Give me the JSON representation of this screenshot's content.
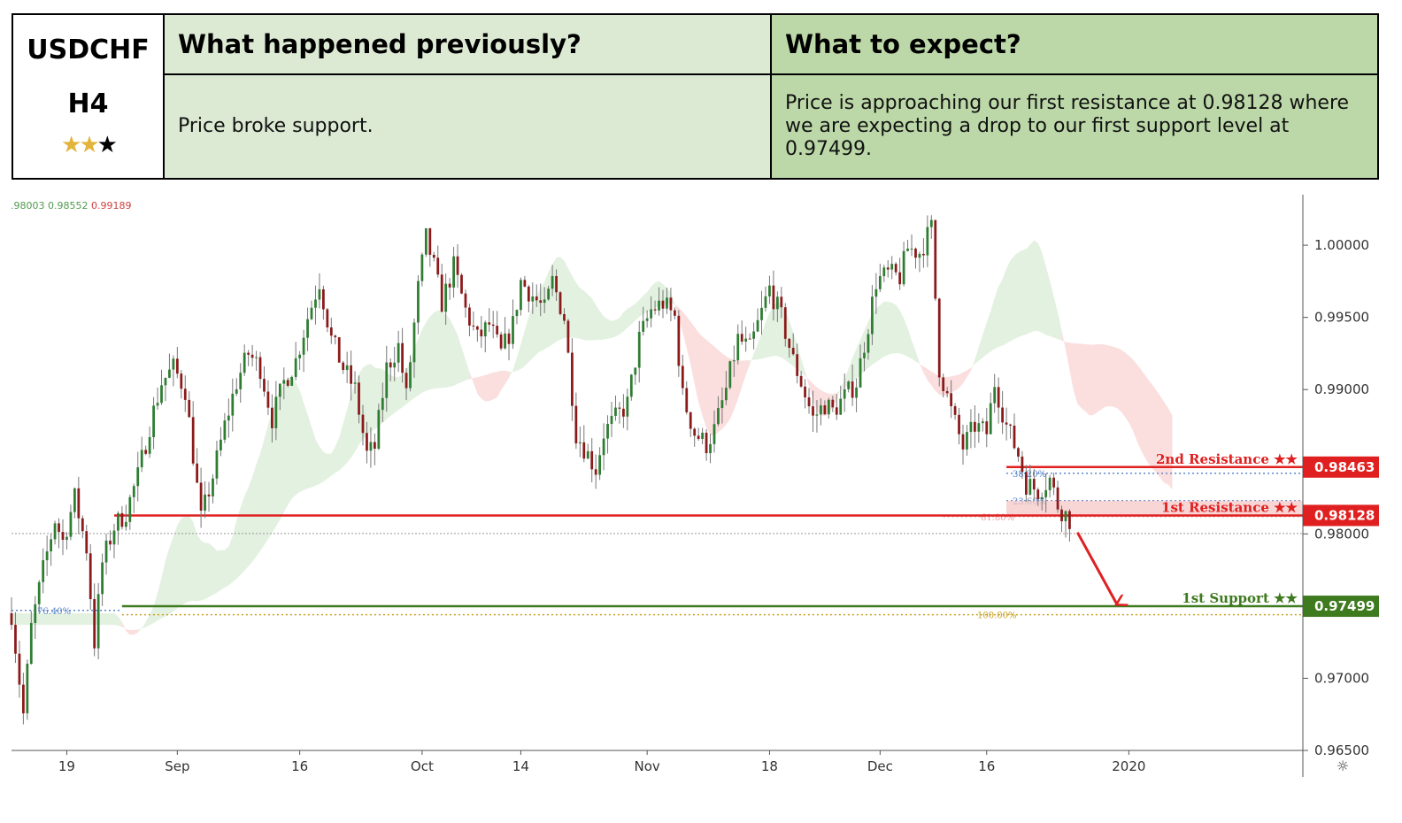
{
  "header": {
    "symbol": "USDCHF",
    "timeframe": "H4",
    "rating_stars_filled": 2,
    "rating_stars_total": 3,
    "prev_title": "What happened previously?",
    "prev_text": "Price broke support.",
    "expect_title": "What to expect?",
    "expect_text": "Price is approaching our first resistance at 0.98128 where we are expecting a drop to our first support level at 0.97499."
  },
  "legend_values": [
    ".98003",
    "0.98552",
    "0.99189"
  ],
  "chart_data": {
    "type": "candlestick",
    "symbol": "USDCHF",
    "timeframe": "H4",
    "ylim": [
      0.965,
      1.0035
    ],
    "yticks": [
      "1.00000",
      "0.99500",
      "0.99000",
      "0.98000",
      "0.97000",
      "0.96500"
    ],
    "xticks": [
      "19",
      "Sep",
      "16",
      "Oct",
      "14",
      "Nov",
      "18",
      "Dec",
      "16",
      "2020"
    ],
    "close_path": [
      [
        0,
        0.9745
      ],
      [
        3,
        0.9675
      ],
      [
        5,
        0.9735
      ],
      [
        8,
        0.9775
      ],
      [
        11,
        0.981
      ],
      [
        13,
        0.9795
      ],
      [
        16,
        0.9825
      ],
      [
        19,
        0.979
      ],
      [
        21,
        0.9725
      ],
      [
        23,
        0.978
      ],
      [
        26,
        0.9805
      ],
      [
        29,
        0.9815
      ],
      [
        32,
        0.984
      ],
      [
        35,
        0.9875
      ],
      [
        38,
        0.9905
      ],
      [
        41,
        0.9915
      ],
      [
        44,
        0.99
      ],
      [
        46,
        0.9855
      ],
      [
        48,
        0.981
      ],
      [
        51,
        0.984
      ],
      [
        54,
        0.9875
      ],
      [
        57,
        0.9905
      ],
      [
        60,
        0.9925
      ],
      [
        63,
        0.9915
      ],
      [
        66,
        0.988
      ],
      [
        69,
        0.9905
      ],
      [
        72,
        0.992
      ],
      [
        75,
        0.995
      ],
      [
        78,
        0.9975
      ],
      [
        81,
        0.9935
      ],
      [
        84,
        0.9915
      ],
      [
        87,
        0.99
      ],
      [
        90,
        0.9855
      ],
      [
        92,
        0.986
      ],
      [
        95,
        0.9915
      ],
      [
        98,
        0.993
      ],
      [
        100,
        0.9895
      ],
      [
        103,
        0.997
      ],
      [
        105,
        1.0005
      ],
      [
        107,
        0.9985
      ],
      [
        109,
        0.996
      ],
      [
        112,
        0.9985
      ],
      [
        115,
        0.9955
      ],
      [
        118,
        0.9935
      ],
      [
        121,
        0.9945
      ],
      [
        124,
        0.9925
      ],
      [
        127,
        0.9945
      ],
      [
        129,
        0.9975
      ],
      [
        132,
        0.9965
      ],
      [
        135,
        0.9955
      ],
      [
        137,
        0.9975
      ],
      [
        140,
        0.995
      ],
      [
        143,
        0.987
      ],
      [
        146,
        0.9855
      ],
      [
        148,
        0.9845
      ],
      [
        150,
        0.987
      ],
      [
        153,
        0.988
      ],
      [
        156,
        0.989
      ],
      [
        159,
        0.9935
      ],
      [
        162,
        0.9955
      ],
      [
        165,
        0.996
      ],
      [
        168,
        0.995
      ],
      [
        170,
        0.9895
      ],
      [
        173,
        0.987
      ],
      [
        176,
        0.9862
      ],
      [
        178,
        0.9872
      ],
      [
        181,
        0.99
      ],
      [
        184,
        0.9935
      ],
      [
        187,
        0.9928
      ],
      [
        189,
        0.9945
      ],
      [
        192,
        0.997
      ],
      [
        195,
        0.995
      ],
      [
        198,
        0.992
      ],
      [
        200,
        0.9905
      ],
      [
        203,
        0.988
      ],
      [
        206,
        0.989
      ],
      [
        208,
        0.9885
      ],
      [
        211,
        0.9895
      ],
      [
        214,
        0.9905
      ],
      [
        217,
        0.9945
      ],
      [
        219,
        0.9975
      ],
      [
        222,
        0.998
      ],
      [
        225,
        0.9978
      ],
      [
        227,
        0.9998
      ],
      [
        230,
        0.9995
      ],
      [
        233,
        1.0012
      ],
      [
        235,
        0.9915
      ],
      [
        238,
        0.9885
      ],
      [
        241,
        0.986
      ],
      [
        244,
        0.9875
      ],
      [
        247,
        0.987
      ],
      [
        249,
        0.9905
      ],
      [
        252,
        0.9875
      ],
      [
        255,
        0.9855
      ],
      [
        257,
        0.9835
      ],
      [
        260,
        0.983
      ],
      [
        263,
        0.9838
      ],
      [
        265,
        0.982
      ],
      [
        268,
        0.981
      ]
    ],
    "x_domain": [
      0,
      330
    ],
    "annotations": {
      "resistance_2": {
        "label": "2nd Resistance ★★",
        "value": 0.98463,
        "display": "0.98463"
      },
      "resistance_1": {
        "label": "1st Resistance ★★",
        "value": 0.98128,
        "display": "0.98128"
      },
      "support_1": {
        "label": "1st Support ★★",
        "value": 0.97499,
        "display": "0.97499"
      },
      "last_price": 0.98003,
      "fib_levels": [
        {
          "label": "38.20%",
          "value": 0.9842
        },
        {
          "label": "23.60%",
          "value": 0.9823
        },
        {
          "label": "61.80%",
          "value": 0.9812
        },
        {
          "label": "76.40%",
          "value": 0.9747
        },
        {
          "label": "100.00%",
          "value": 0.9744
        }
      ],
      "expected_move": {
        "from_value": 0.9801,
        "to_value": 0.975
      }
    },
    "colors": {
      "bull": "#2e7d32",
      "bear": "#8b1a1a",
      "resistance": "#e02020",
      "support": "#3e7a1e",
      "cloud_bull": "#e3f1e0",
      "cloud_bear": "#fbdede"
    }
  }
}
